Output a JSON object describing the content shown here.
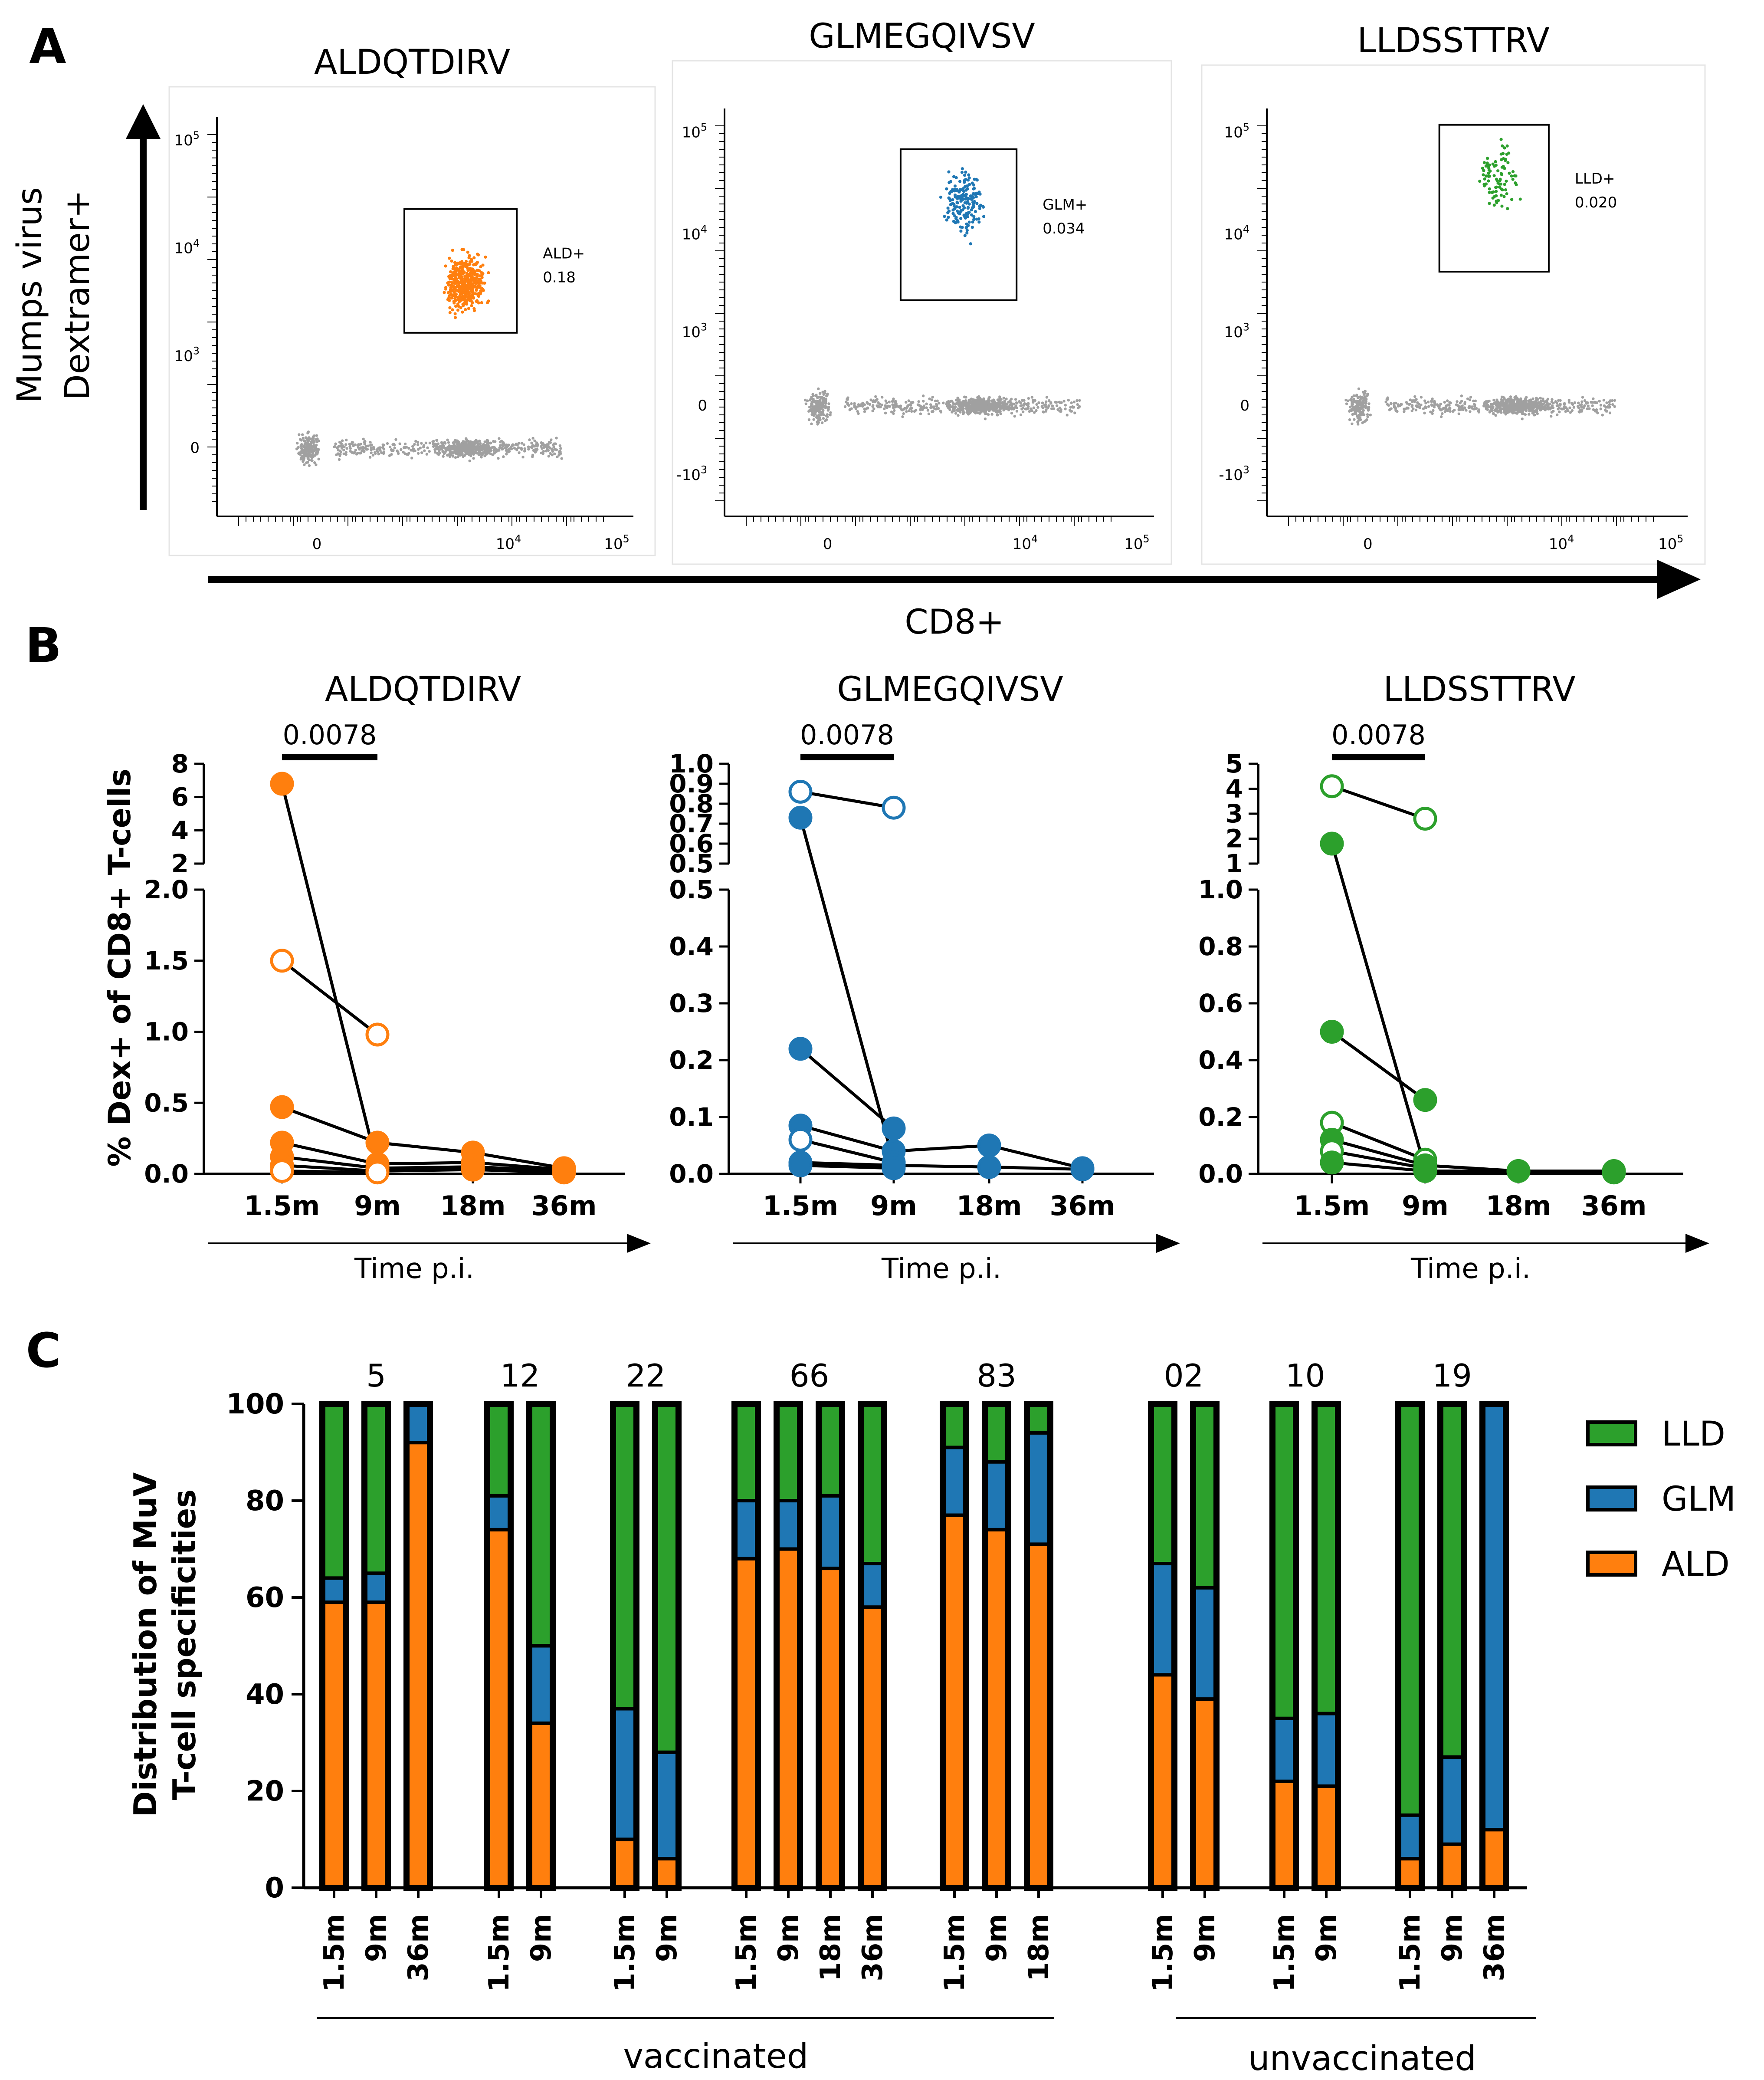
{
  "colors": {
    "orange": "#ff7f0e",
    "blue": "#1f77b4",
    "green": "#2ca02c",
    "gray": "#a0a0a0",
    "black": "#000000"
  },
  "panel_labels": [
    "A",
    "B",
    "C"
  ],
  "panelA": {
    "y_axis_title": [
      "Mumps virus",
      "Dextramer+"
    ],
    "x_axis_title": "CD8+",
    "plots": [
      {
        "title": "ALDQTDIRV",
        "gate_label": "ALD+",
        "gate_value": "0.18",
        "color_key": "orange",
        "y_ticks": [
          "10^5",
          "10^4",
          "10^3",
          "0"
        ],
        "x_ticks": [
          "0",
          "10^4",
          "10^5"
        ]
      },
      {
        "title": "GLMEGQIVSV",
        "gate_label": "GLM+",
        "gate_value": "0.034",
        "color_key": "blue",
        "y_ticks": [
          "10^5",
          "10^4",
          "10^3",
          "0",
          "-10^3"
        ],
        "x_ticks": [
          "0",
          "10^4",
          "10^5"
        ]
      },
      {
        "title": "LLDSSTTRV",
        "gate_label": "LLD+",
        "gate_value": "0.020",
        "color_key": "green",
        "y_ticks": [
          "10^5",
          "10^4",
          "10^3",
          "0",
          "-10^3"
        ],
        "x_ticks": [
          "0",
          "10^4",
          "10^5"
        ]
      }
    ]
  },
  "chart_data": [
    {
      "type": "line",
      "panel": "B",
      "title": "ALDQTDIRV",
      "ylabel": "% Dex+ of CD8+ T-cells",
      "xlabel": "Time p.i.",
      "categories": [
        "1.5m",
        "9m",
        "18m",
        "36m"
      ],
      "p_value": "0.0078",
      "y_break": {
        "lower": [
          0,
          2.0
        ],
        "lower_ticks": [
          "0.0",
          "0.5",
          "1.0",
          "1.5",
          "2.0"
        ],
        "upper": [
          2,
          8
        ],
        "upper_ticks": [
          "2",
          "4",
          "6",
          "8"
        ]
      },
      "series": [
        {
          "values": [
            6.8,
            0.05,
            null,
            null
          ],
          "filled": true
        },
        {
          "values": [
            1.5,
            0.98,
            null,
            null
          ],
          "filled": false
        },
        {
          "values": [
            0.47,
            0.22,
            0.15,
            0.04
          ],
          "filled": true
        },
        {
          "values": [
            0.22,
            0.07,
            0.08,
            0.03
          ],
          "filled": true
        },
        {
          "values": [
            0.12,
            0.04,
            0.05,
            0.02
          ],
          "filled": true
        },
        {
          "values": [
            0.06,
            0.02,
            0.03,
            0.01
          ],
          "filled": true
        },
        {
          "values": [
            0.02,
            0.01,
            null,
            null
          ],
          "filled": false
        }
      ]
    },
    {
      "type": "line",
      "panel": "B",
      "title": "GLMEGQIVSV",
      "categories": [
        "1.5m",
        "9m",
        "18m",
        "36m"
      ],
      "xlabel": "Time p.i.",
      "p_value": "0.0078",
      "y_break": {
        "lower": [
          0,
          0.5
        ],
        "lower_ticks": [
          "0.0",
          "0.1",
          "0.2",
          "0.3",
          "0.4",
          "0.5"
        ],
        "upper": [
          0.5,
          1.0
        ],
        "upper_ticks": [
          "0.5",
          "0.6",
          "0.7",
          "0.8",
          "0.9",
          "1.0"
        ]
      },
      "series": [
        {
          "values": [
            0.86,
            0.78,
            null,
            null
          ],
          "filled": false
        },
        {
          "values": [
            0.73,
            0.02,
            null,
            null
          ],
          "filled": true
        },
        {
          "values": [
            0.22,
            0.08,
            null,
            null
          ],
          "filled": true
        },
        {
          "values": [
            0.085,
            0.04,
            0.05,
            0.01
          ],
          "filled": true
        },
        {
          "values": [
            0.06,
            0.02,
            null,
            null
          ],
          "filled": false
        },
        {
          "values": [
            0.02,
            0.015,
            0.012,
            0.008
          ],
          "filled": true
        },
        {
          "values": [
            0.015,
            0.01,
            null,
            null
          ],
          "filled": true
        }
      ]
    },
    {
      "type": "line",
      "panel": "B",
      "title": "LLDSSTTRV",
      "categories": [
        "1.5m",
        "9m",
        "18m",
        "36m"
      ],
      "xlabel": "Time p.i.",
      "p_value": "0.0078",
      "y_break": {
        "lower": [
          0,
          1.0
        ],
        "lower_ticks": [
          "0.0",
          "0.2",
          "0.4",
          "0.6",
          "0.8",
          "1.0"
        ],
        "upper": [
          1,
          5
        ],
        "upper_ticks": [
          "1",
          "2",
          "3",
          "4",
          "5"
        ]
      },
      "series": [
        {
          "values": [
            4.1,
            2.8,
            null,
            null
          ],
          "filled": false
        },
        {
          "values": [
            1.8,
            0.02,
            null,
            null
          ],
          "filled": true
        },
        {
          "values": [
            0.5,
            0.26,
            null,
            null
          ],
          "filled": true
        },
        {
          "values": [
            0.18,
            0.05,
            null,
            null
          ],
          "filled": false
        },
        {
          "values": [
            0.12,
            0.03,
            0.01,
            0.01
          ],
          "filled": true
        },
        {
          "values": [
            0.08,
            0.02,
            null,
            null
          ],
          "filled": false
        },
        {
          "values": [
            0.04,
            0.01,
            0.01,
            0.005
          ],
          "filled": true
        }
      ]
    },
    {
      "type": "bar",
      "panel": "C",
      "stacked": true,
      "ylabel": [
        "Distribution of MuV",
        "T-cell specificities"
      ],
      "ylim": [
        0,
        100
      ],
      "y_ticks": [
        "0",
        "20",
        "40",
        "60",
        "80",
        "100"
      ],
      "legend": [
        {
          "name": "LLD",
          "color_key": "green"
        },
        {
          "name": "GLM",
          "color_key": "blue"
        },
        {
          "name": "ALD",
          "color_key": "orange"
        }
      ],
      "groups": [
        {
          "id": "5",
          "cohort": "vaccinated",
          "bars": [
            {
              "time": "1.5m",
              "ALD": 59,
              "GLM": 5,
              "LLD": 36
            },
            {
              "time": "9m",
              "ALD": 59,
              "GLM": 6,
              "LLD": 35
            },
            {
              "time": "36m",
              "ALD": 92,
              "GLM": 8,
              "LLD": 0
            }
          ]
        },
        {
          "id": "12",
          "cohort": "vaccinated",
          "bars": [
            {
              "time": "1.5m",
              "ALD": 74,
              "GLM": 7,
              "LLD": 19
            },
            {
              "time": "9m",
              "ALD": 34,
              "GLM": 16,
              "LLD": 50
            }
          ]
        },
        {
          "id": "22",
          "cohort": "vaccinated",
          "bars": [
            {
              "time": "1.5m",
              "ALD": 10,
              "GLM": 27,
              "LLD": 63
            },
            {
              "time": "9m",
              "ALD": 6,
              "GLM": 22,
              "LLD": 72
            }
          ]
        },
        {
          "id": "66",
          "cohort": "vaccinated",
          "bars": [
            {
              "time": "1.5m",
              "ALD": 68,
              "GLM": 12,
              "LLD": 20
            },
            {
              "time": "9m",
              "ALD": 70,
              "GLM": 10,
              "LLD": 20
            },
            {
              "time": "18m",
              "ALD": 66,
              "GLM": 15,
              "LLD": 19
            },
            {
              "time": "36m",
              "ALD": 58,
              "GLM": 9,
              "LLD": 33
            }
          ]
        },
        {
          "id": "83",
          "cohort": "vaccinated",
          "bars": [
            {
              "time": "1.5m",
              "ALD": 77,
              "GLM": 14,
              "LLD": 9
            },
            {
              "time": "9m",
              "ALD": 74,
              "GLM": 14,
              "LLD": 12
            },
            {
              "time": "18m",
              "ALD": 71,
              "GLM": 23,
              "LLD": 6
            }
          ]
        },
        {
          "id": "02",
          "cohort": "unvaccinated",
          "bars": [
            {
              "time": "1.5m",
              "ALD": 44,
              "GLM": 23,
              "LLD": 33
            },
            {
              "time": "9m",
              "ALD": 39,
              "GLM": 23,
              "LLD": 38
            }
          ]
        },
        {
          "id": "10",
          "cohort": "unvaccinated",
          "bars": [
            {
              "time": "1.5m",
              "ALD": 22,
              "GLM": 13,
              "LLD": 65
            },
            {
              "time": "9m",
              "ALD": 21,
              "GLM": 15,
              "LLD": 64
            }
          ]
        },
        {
          "id": "19",
          "cohort": "unvaccinated",
          "bars": [
            {
              "time": "1.5m",
              "ALD": 6,
              "GLM": 9,
              "LLD": 85
            },
            {
              "time": "9m",
              "ALD": 9,
              "GLM": 18,
              "LLD": 73
            },
            {
              "time": "36m",
              "ALD": 12,
              "GLM": 88,
              "LLD": 0
            }
          ]
        }
      ],
      "cohort_labels": [
        "vaccinated",
        "unvaccinated"
      ]
    }
  ]
}
